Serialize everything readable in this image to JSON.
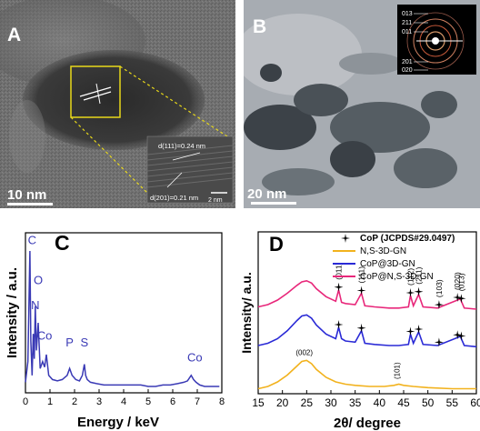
{
  "panel_a": {
    "label": "A",
    "scale_bar": "10 nm",
    "inset_d111": "d(111)=0.24 nm",
    "inset_d201": "d(201)=0.21 nm",
    "inset_scale": "2 nm",
    "colors": {
      "box": "#e8d81a",
      "dashed": "#e8d81a"
    }
  },
  "panel_b": {
    "label": "B",
    "scale_bar": "20 nm",
    "saed_rings": [
      "013",
      "211",
      "011",
      "201",
      "020"
    ]
  },
  "panel_c": {
    "label": "C",
    "chart_data": {
      "type": "line",
      "xlabel": "Energy / keV",
      "ylabel": "Intensity / a.u.",
      "xlim": [
        0,
        8
      ],
      "x_ticks": [
        0,
        1,
        2,
        3,
        4,
        5,
        6,
        7,
        8
      ],
      "color": "#3a3ab5",
      "series": [
        {
          "x": [
            0.0,
            0.1,
            0.18,
            0.22,
            0.27,
            0.32,
            0.36,
            0.4,
            0.45,
            0.52,
            0.6,
            0.7,
            0.78,
            0.85,
            0.95,
            1.1,
            1.3,
            1.5,
            1.7,
            1.8,
            1.9,
            2.05,
            2.2,
            2.32,
            2.4,
            2.45,
            2.52,
            2.65,
            2.9,
            3.2,
            3.5,
            3.8,
            4.1,
            4.4,
            4.7,
            5.0,
            5.3,
            5.6,
            5.9,
            6.2,
            6.45,
            6.6,
            6.75,
            6.85,
            6.95,
            7.1,
            7.3,
            7.6,
            7.9
          ],
          "y": [
            0.05,
            0.2,
            1.0,
            0.35,
            0.1,
            0.4,
            0.22,
            0.6,
            0.28,
            0.48,
            0.15,
            0.2,
            0.16,
            0.25,
            0.1,
            0.07,
            0.06,
            0.07,
            0.1,
            0.15,
            0.1,
            0.07,
            0.06,
            0.1,
            0.18,
            0.1,
            0.07,
            0.05,
            0.04,
            0.03,
            0.03,
            0.03,
            0.03,
            0.03,
            0.03,
            0.02,
            0.02,
            0.03,
            0.03,
            0.04,
            0.05,
            0.06,
            0.1,
            0.07,
            0.05,
            0.03,
            0.02,
            0.02,
            0.02
          ]
        }
      ],
      "annotations": [
        {
          "text": "C",
          "x": 0.27,
          "y": 1.05
        },
        {
          "text": "O",
          "x": 0.52,
          "y": 0.76
        },
        {
          "text": "N",
          "x": 0.4,
          "y": 0.58
        },
        {
          "text": "Co",
          "x": 0.78,
          "y": 0.36
        },
        {
          "text": "P",
          "x": 1.8,
          "y": 0.31
        },
        {
          "text": "S",
          "x": 2.4,
          "y": 0.31
        },
        {
          "text": "Co",
          "x": 6.9,
          "y": 0.2
        }
      ]
    }
  },
  "panel_d": {
    "label": "D",
    "chart_data": {
      "type": "line",
      "xlabel": "2θ/ degree",
      "ylabel": "Intensity/ a.u.",
      "xlim": [
        15,
        60
      ],
      "x_ticks": [
        15,
        20,
        25,
        30,
        35,
        40,
        45,
        50,
        55,
        60
      ],
      "legend": [
        {
          "name": "CoP (JCPDS#29.0497)",
          "marker": "star",
          "color": "#000000"
        },
        {
          "name": "N,S-3D-GN",
          "color": "#f2b21d"
        },
        {
          "name": "CoP@3D-GN",
          "color": "#2a2ad6"
        },
        {
          "name": "CoP@N,S-3D-GN",
          "color": "#e8277a"
        }
      ],
      "series": [
        {
          "name": "N,S-3D-GN",
          "color": "#f2b21d",
          "x": [
            15,
            17,
            19,
            21,
            23,
            24,
            25,
            26,
            27,
            29,
            31,
            33,
            35,
            38,
            41,
            43,
            44,
            45,
            47,
            50,
            55,
            60
          ],
          "y": [
            0.02,
            0.04,
            0.08,
            0.14,
            0.22,
            0.26,
            0.27,
            0.24,
            0.19,
            0.12,
            0.08,
            0.06,
            0.05,
            0.04,
            0.04,
            0.05,
            0.06,
            0.05,
            0.04,
            0.03,
            0.02,
            0.02
          ]
        },
        {
          "name": "CoP@3D-GN",
          "color": "#2a2ad6",
          "x": [
            15,
            17,
            19,
            21,
            23,
            24,
            25,
            26,
            27,
            29,
            31,
            31.6,
            32.2,
            33,
            35,
            36.3,
            37,
            39,
            42,
            44,
            46,
            46.4,
            47,
            48.1,
            49,
            52,
            56.7,
            57.5,
            60
          ],
          "y": [
            0.4,
            0.42,
            0.46,
            0.53,
            0.62,
            0.66,
            0.67,
            0.64,
            0.58,
            0.5,
            0.46,
            0.56,
            0.46,
            0.44,
            0.43,
            0.53,
            0.42,
            0.41,
            0.4,
            0.4,
            0.41,
            0.5,
            0.42,
            0.52,
            0.41,
            0.4,
            0.48,
            0.4,
            0.39
          ]
        },
        {
          "name": "CoP@N,S-3D-GN",
          "color": "#e8277a",
          "x": [
            15,
            17,
            19,
            21,
            23,
            24,
            25,
            26,
            27,
            29,
            31,
            31.6,
            32.2,
            33,
            35,
            36.3,
            37,
            39,
            42,
            44,
            46,
            46.4,
            47,
            48.1,
            49,
            52,
            56.7,
            57.5,
            60
          ],
          "y": [
            0.74,
            0.76,
            0.8,
            0.86,
            0.93,
            0.96,
            0.97,
            0.95,
            0.9,
            0.83,
            0.79,
            0.89,
            0.78,
            0.77,
            0.76,
            0.86,
            0.75,
            0.74,
            0.73,
            0.73,
            0.74,
            0.84,
            0.75,
            0.85,
            0.74,
            0.73,
            0.81,
            0.73,
            0.72
          ]
        }
      ],
      "peak_labels": [
        "(011)",
        "(111)",
        "(112)",
        "(211)",
        "(103)",
        "(020)",
        "(013)"
      ],
      "peak_positions": [
        31.6,
        36.3,
        46.4,
        48.1,
        52.3,
        56.1,
        56.9
      ],
      "carbon_labels": [
        {
          "text": "(002)",
          "x": 25.0
        },
        {
          "text": "(101)",
          "x": 43.6
        }
      ]
    }
  }
}
